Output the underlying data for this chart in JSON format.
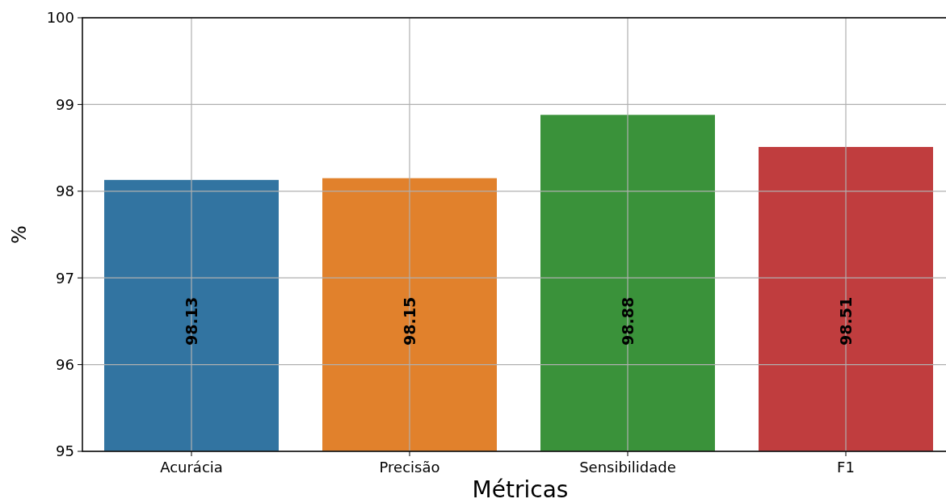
{
  "chart_data": {
    "type": "bar",
    "xlabel": "Métricas",
    "ylabel": "%",
    "categories": [
      "Acurácia",
      "Precisão",
      "Sensibilidade",
      "F1"
    ],
    "values": [
      98.13,
      98.15,
      98.88,
      98.51
    ],
    "colors": [
      "#3274a1",
      "#e1812c",
      "#3a923a",
      "#c03d3e"
    ],
    "ylim": [
      95,
      100
    ],
    "yticks": [
      95,
      96,
      97,
      98,
      99,
      100
    ],
    "grid": true,
    "data_labels": true
  }
}
